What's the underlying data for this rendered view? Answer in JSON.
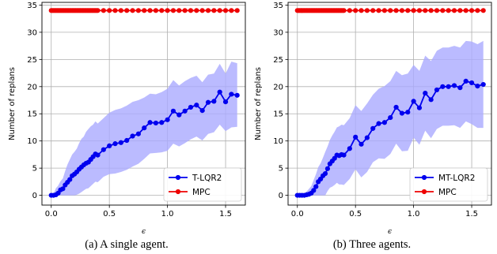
{
  "chart_data": [
    {
      "type": "line",
      "caption": "(a) A single agent.",
      "xlabel": "ϵ",
      "ylabel": "Number of replans",
      "xlim": [
        -0.08,
        1.67
      ],
      "ylim": [
        -1.8,
        35.5
      ],
      "xticks": [
        0.0,
        0.5,
        1.0,
        1.5
      ],
      "xtick_labels": [
        "0.0",
        "0.5",
        "1.0",
        "1.5"
      ],
      "yticks": [
        0,
        5,
        10,
        15,
        20,
        25,
        30,
        35
      ],
      "ytick_labels": [
        "0",
        "5",
        "10",
        "15",
        "20",
        "25",
        "30",
        "35"
      ],
      "grid": true,
      "legend_position": "lower-right",
      "band_color": "#aaaaff",
      "series": [
        {
          "name": "T-LQR2",
          "color": "#0000ee",
          "x": [
            0.0,
            0.02,
            0.04,
            0.06,
            0.08,
            0.1,
            0.12,
            0.14,
            0.16,
            0.18,
            0.2,
            0.22,
            0.24,
            0.26,
            0.28,
            0.3,
            0.32,
            0.34,
            0.36,
            0.38,
            0.4,
            0.45,
            0.5,
            0.55,
            0.6,
            0.65,
            0.7,
            0.75,
            0.8,
            0.85,
            0.9,
            0.95,
            1.0,
            1.05,
            1.1,
            1.15,
            1.2,
            1.25,
            1.3,
            1.35,
            1.4,
            1.45,
            1.5,
            1.55,
            1.6
          ],
          "y": [
            0.0,
            0.0,
            0.1,
            0.4,
            1.0,
            1.2,
            1.9,
            2.4,
            2.9,
            3.6,
            3.9,
            4.3,
            4.8,
            5.2,
            5.6,
            5.9,
            6.1,
            6.6,
            7.1,
            7.6,
            7.4,
            8.4,
            9.1,
            9.5,
            9.7,
            10.1,
            10.9,
            11.3,
            12.4,
            13.4,
            13.3,
            13.4,
            13.9,
            15.5,
            14.8,
            15.5,
            16.2,
            16.6,
            15.6,
            17.1,
            17.3,
            19.0,
            17.2,
            18.6,
            18.4
          ],
          "upper": [
            0.0,
            0.3,
            1.3,
            1.8,
            2.6,
            3.1,
            4.5,
            5.7,
            6.6,
            7.5,
            8.0,
            8.6,
            9.6,
            10.4,
            10.8,
            11.7,
            12.2,
            12.7,
            13.0,
            13.6,
            13.2,
            14.2,
            15.2,
            15.7,
            16.0,
            16.5,
            17.2,
            17.5,
            18.0,
            18.7,
            18.6,
            19.0,
            19.6,
            21.2,
            20.2,
            21.0,
            21.6,
            22.0,
            20.8,
            22.2,
            22.4,
            24.2,
            22.4,
            24.6,
            24.3
          ],
          "lower": [
            0.0,
            0.0,
            0.0,
            0.0,
            0.0,
            0.0,
            0.0,
            0.0,
            0.0,
            0.0,
            0.0,
            0.1,
            0.3,
            0.6,
            0.9,
            1.2,
            1.3,
            1.7,
            2.1,
            2.5,
            2.4,
            3.4,
            3.9,
            4.0,
            4.3,
            4.7,
            5.3,
            5.8,
            6.7,
            7.7,
            7.8,
            7.9,
            8.2,
            9.5,
            9.0,
            9.6,
            10.3,
            10.8,
            10.1,
            11.3,
            11.6,
            13.0,
            11.8,
            12.5,
            12.6
          ]
        },
        {
          "name": "MPC",
          "color": "#ee0000",
          "x": [
            0.0,
            0.01,
            0.02,
            0.03,
            0.04,
            0.05,
            0.06,
            0.07,
            0.08,
            0.09,
            0.1,
            0.11,
            0.12,
            0.13,
            0.14,
            0.15,
            0.16,
            0.17,
            0.18,
            0.19,
            0.2,
            0.21,
            0.22,
            0.23,
            0.24,
            0.25,
            0.26,
            0.27,
            0.28,
            0.29,
            0.3,
            0.31,
            0.32,
            0.33,
            0.34,
            0.35,
            0.36,
            0.37,
            0.38,
            0.39,
            0.4,
            0.45,
            0.5,
            0.55,
            0.6,
            0.65,
            0.7,
            0.75,
            0.8,
            0.85,
            0.9,
            0.95,
            1.0,
            1.05,
            1.1,
            1.15,
            1.2,
            1.25,
            1.3,
            1.35,
            1.4,
            1.45,
            1.5,
            1.55,
            1.6
          ],
          "y_const": 34
        }
      ]
    },
    {
      "type": "line",
      "caption": "(b) Three agents.",
      "xlabel": "ϵ",
      "ylabel": "Number of replans",
      "xlim": [
        -0.08,
        1.67
      ],
      "ylim": [
        -1.8,
        35.5
      ],
      "xticks": [
        0.0,
        0.5,
        1.0,
        1.5
      ],
      "xtick_labels": [
        "0.0",
        "0.5",
        "1.0",
        "1.5"
      ],
      "yticks": [
        0,
        5,
        10,
        15,
        20,
        25,
        30,
        35
      ],
      "ytick_labels": [
        "0",
        "5",
        "10",
        "15",
        "20",
        "25",
        "30",
        "35"
      ],
      "grid": true,
      "legend_position": "lower-right",
      "band_color": "#aaaaff",
      "series": [
        {
          "name": "MT-LQR2",
          "color": "#0000ee",
          "x": [
            0.0,
            0.02,
            0.04,
            0.06,
            0.08,
            0.1,
            0.12,
            0.14,
            0.16,
            0.18,
            0.2,
            0.22,
            0.24,
            0.26,
            0.28,
            0.3,
            0.32,
            0.34,
            0.36,
            0.38,
            0.4,
            0.45,
            0.5,
            0.55,
            0.6,
            0.65,
            0.7,
            0.75,
            0.8,
            0.85,
            0.9,
            0.95,
            1.0,
            1.05,
            1.1,
            1.15,
            1.2,
            1.25,
            1.3,
            1.35,
            1.4,
            1.45,
            1.5,
            1.55,
            1.6
          ],
          "y": [
            0.0,
            0.0,
            0.0,
            0.0,
            0.1,
            0.2,
            0.4,
            0.9,
            1.6,
            2.5,
            3.0,
            3.6,
            4.0,
            4.9,
            5.8,
            6.3,
            6.8,
            7.4,
            7.3,
            7.5,
            7.4,
            8.6,
            10.7,
            9.4,
            10.6,
            12.3,
            13.2,
            13.4,
            14.3,
            16.2,
            15.1,
            15.3,
            17.3,
            16.1,
            18.8,
            17.6,
            19.4,
            20.0,
            20.0,
            20.2,
            19.8,
            21.0,
            20.7,
            20.1,
            20.4
          ],
          "upper": [
            0.0,
            0.0,
            0.0,
            0.3,
            0.7,
            1.2,
            1.7,
            2.8,
            3.9,
            5.2,
            5.9,
            6.9,
            8.0,
            9.0,
            10.2,
            11.0,
            11.7,
            12.5,
            12.7,
            13.0,
            12.9,
            14.2,
            16.6,
            15.5,
            16.9,
            18.5,
            19.6,
            20.1,
            21.0,
            22.9,
            22.1,
            22.4,
            24.0,
            22.9,
            25.7,
            24.7,
            26.6,
            27.2,
            27.2,
            27.5,
            27.2,
            28.4,
            28.3,
            27.8,
            28.4
          ],
          "lower": [
            0.0,
            0.0,
            0.0,
            0.0,
            0.0,
            0.0,
            0.0,
            0.0,
            0.0,
            0.0,
            0.0,
            0.0,
            0.0,
            0.8,
            1.4,
            1.6,
            1.9,
            2.3,
            2.0,
            2.0,
            1.9,
            3.0,
            4.8,
            3.3,
            4.3,
            6.1,
            6.8,
            6.7,
            7.6,
            9.5,
            8.1,
            8.2,
            10.6,
            9.3,
            11.9,
            10.5,
            12.2,
            12.8,
            12.8,
            12.9,
            12.4,
            13.6,
            13.1,
            12.4,
            12.4
          ]
        },
        {
          "name": "MPC",
          "color": "#ee0000",
          "x": [
            0.0,
            0.01,
            0.02,
            0.03,
            0.04,
            0.05,
            0.06,
            0.07,
            0.08,
            0.09,
            0.1,
            0.11,
            0.12,
            0.13,
            0.14,
            0.15,
            0.16,
            0.17,
            0.18,
            0.19,
            0.2,
            0.21,
            0.22,
            0.23,
            0.24,
            0.25,
            0.26,
            0.27,
            0.28,
            0.29,
            0.3,
            0.31,
            0.32,
            0.33,
            0.34,
            0.35,
            0.36,
            0.37,
            0.38,
            0.39,
            0.4,
            0.45,
            0.5,
            0.55,
            0.6,
            0.65,
            0.7,
            0.75,
            0.8,
            0.85,
            0.9,
            0.95,
            1.0,
            1.05,
            1.1,
            1.15,
            1.2,
            1.25,
            1.3,
            1.35,
            1.4,
            1.45,
            1.5,
            1.55,
            1.6
          ],
          "y_const": 34
        }
      ]
    }
  ]
}
